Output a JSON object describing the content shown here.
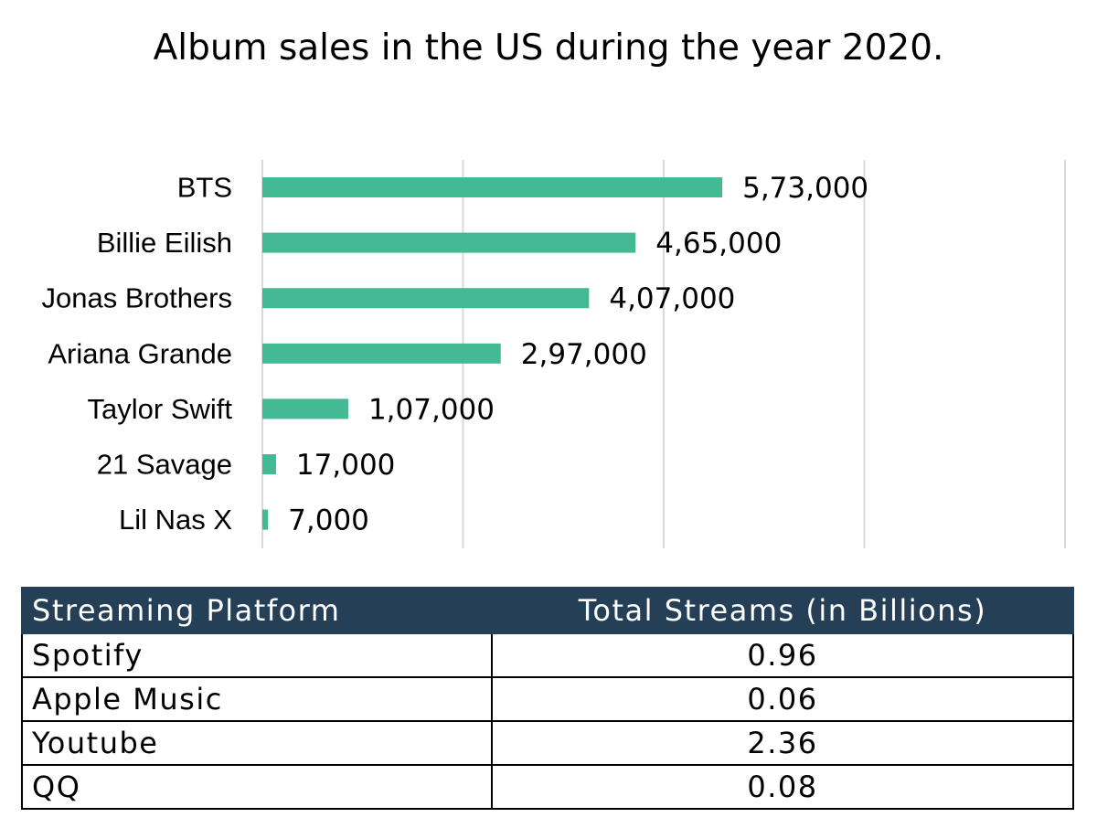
{
  "chart_data": {
    "type": "bar",
    "orientation": "horizontal",
    "title": "Album sales in the US during the year 2020.",
    "categories": [
      "BTS",
      "Billie Eilish",
      "Jonas Brothers",
      "Ariana Grande",
      "Taylor Swift",
      "21 Savage",
      "Lil Nas X"
    ],
    "values": [
      573000,
      465000,
      407000,
      297000,
      107000,
      17000,
      7000
    ],
    "data_labels": [
      "5,73,000",
      "4,65,000",
      "4,07,000",
      "2,97,000",
      "1,07,000",
      "17,000",
      "7,000"
    ],
    "xlim": [
      0,
      1000000
    ],
    "grid": true,
    "bar_color": "#43b994",
    "grid_color": "#d9d9d9"
  },
  "table": {
    "headers": [
      "Streaming Platform",
      "Total Streams (in Billions)"
    ],
    "rows": [
      [
        "Spotify",
        "0.96"
      ],
      [
        "Apple Music",
        "0.06"
      ],
      [
        "Youtube",
        "2.36"
      ],
      [
        "QQ",
        "0.08"
      ]
    ],
    "header_bg": "#243f56",
    "header_color": "#ffffff"
  }
}
